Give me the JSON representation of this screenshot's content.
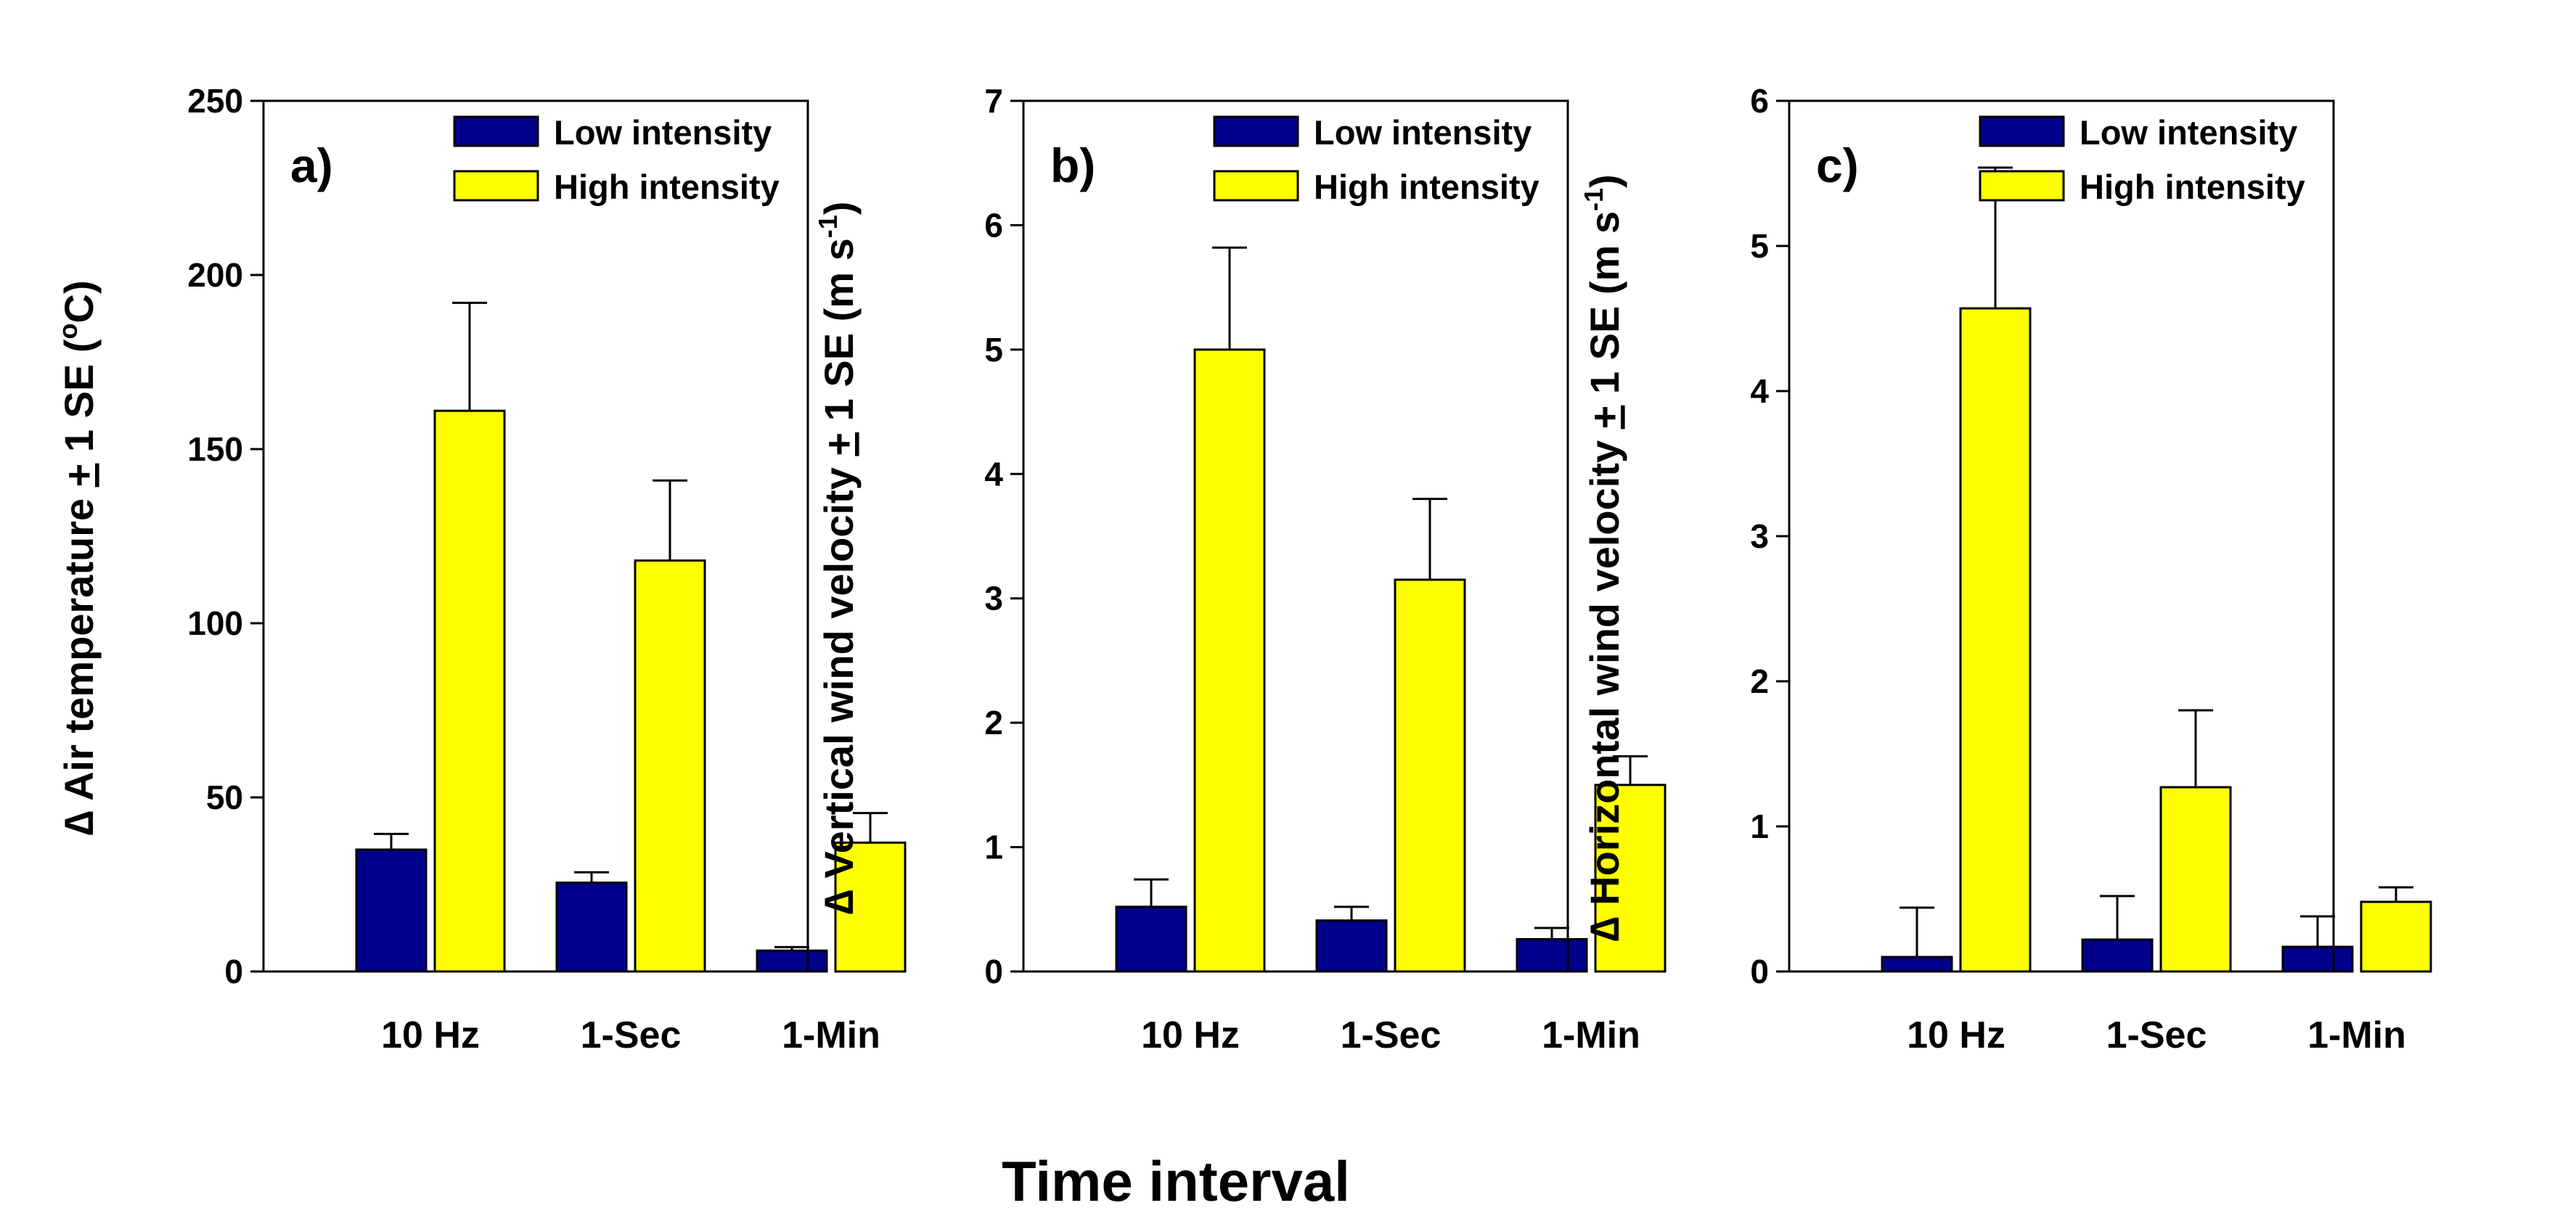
{
  "figure": {
    "xlabel": "Time interval"
  },
  "chart_data": [
    {
      "type": "bar",
      "panel_label": "a)",
      "ylabel": {
        "prefix": "∆ Air temperature ",
        "pm": "+",
        "middle": " 1 SE (",
        "sup": "o",
        "suffix": "C)"
      },
      "ylim": [
        0,
        250
      ],
      "yticks": [
        0,
        50,
        100,
        150,
        200,
        250
      ],
      "categories": [
        "10 Hz",
        "1-Sec",
        "1-Min"
      ],
      "legend_position": "top-right",
      "series": [
        {
          "name": "Low intensity",
          "color": "#00008b",
          "values": [
            35,
            25.5,
            6
          ],
          "se": [
            4.5,
            3,
            1
          ]
        },
        {
          "name": "High intensity",
          "color": "#ffff00",
          "values": [
            161,
            118,
            37
          ],
          "se": [
            31,
            23,
            8.5
          ]
        }
      ]
    },
    {
      "type": "bar",
      "panel_label": "b)",
      "ylabel": {
        "prefix": "∆ Vertical wind velocity ",
        "pm": "+",
        "middle": " 1 SE (m s",
        "sup": "-1",
        "suffix": ")"
      },
      "ylim": [
        0,
        7
      ],
      "yticks": [
        0,
        1,
        2,
        3,
        4,
        5,
        6,
        7
      ],
      "categories": [
        "10 Hz",
        "1-Sec",
        "1-Min"
      ],
      "legend_position": "top-right",
      "series": [
        {
          "name": "Low intensity",
          "color": "#00008b",
          "values": [
            0.52,
            0.41,
            0.26
          ],
          "se": [
            0.22,
            0.11,
            0.09
          ]
        },
        {
          "name": "High intensity",
          "color": "#ffff00",
          "values": [
            5.0,
            3.15,
            1.5
          ],
          "se": [
            0.82,
            0.65,
            0.23
          ]
        }
      ]
    },
    {
      "type": "bar",
      "panel_label": "c)",
      "ylabel": {
        "prefix": "∆ Horizontal wind velocity ",
        "pm": "+",
        "middle": " 1 SE (m s",
        "sup": "-1",
        "suffix": ")"
      },
      "ylim": [
        0,
        6
      ],
      "yticks": [
        0,
        1,
        2,
        3,
        4,
        5,
        6
      ],
      "categories": [
        "10 Hz",
        "1-Sec",
        "1-Min"
      ],
      "legend_position": "top-right",
      "series": [
        {
          "name": "Low intensity",
          "color": "#00008b",
          "values": [
            0.1,
            0.22,
            0.17
          ],
          "se": [
            0.34,
            0.3,
            0.21
          ]
        },
        {
          "name": "High intensity",
          "color": "#ffff00",
          "values": [
            4.57,
            1.27,
            0.48
          ],
          "se": [
            0.97,
            0.53,
            0.1
          ]
        }
      ]
    }
  ]
}
